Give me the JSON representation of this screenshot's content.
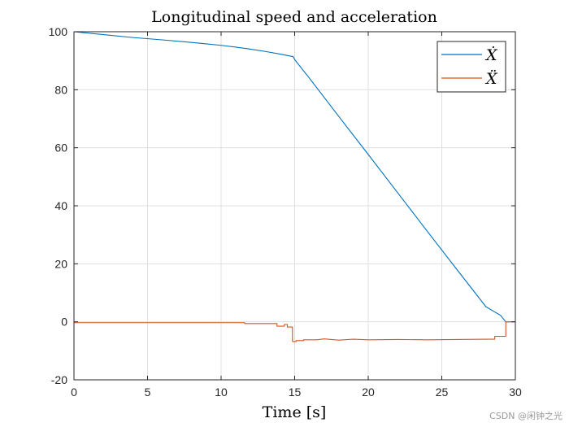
{
  "watermark": "CSDN @闲钟之光",
  "chart_data": {
    "type": "line",
    "title": "Longitudinal speed and acceleration",
    "xlabel": "Time [s]",
    "ylabel": "",
    "xlim": [
      0,
      30
    ],
    "ylim": [
      -20,
      100
    ],
    "xticks": [
      0,
      5,
      10,
      15,
      20,
      25,
      30
    ],
    "yticks": [
      -20,
      0,
      20,
      40,
      60,
      80,
      100
    ],
    "grid": true,
    "legend_position": "top-right",
    "series": [
      {
        "name": "Ẋ",
        "color": "#0072BD",
        "x": [
          0,
          2,
          4,
          6,
          8,
          10,
          11,
          12,
          13,
          14,
          14.9,
          15.0,
          16,
          18,
          20,
          22,
          24,
          26,
          28,
          29.0,
          29.35,
          30
        ],
        "y": [
          100,
          99,
          98,
          97.2,
          96.3,
          95.3,
          94.7,
          94,
          93.2,
          92.3,
          91.4,
          90.4,
          84,
          70.8,
          57.7,
          44.5,
          31.3,
          18.2,
          5.2,
          2.2,
          0,
          0
        ]
      },
      {
        "name": "Ẍ",
        "color": "#D95319",
        "x": [
          0,
          11.6,
          11.6,
          13.8,
          13.8,
          14.3,
          14.3,
          14.5,
          14.5,
          14.85,
          14.85,
          15.1,
          15.1,
          15.6,
          15.6,
          16.5,
          17,
          18,
          19,
          20,
          22,
          24,
          26,
          28,
          28.6,
          28.6,
          29.35,
          29.35,
          30
        ],
        "y": [
          -0.3,
          -0.3,
          -0.6,
          -0.6,
          -1.5,
          -1.5,
          -0.9,
          -0.9,
          -1.8,
          -1.8,
          -6.8,
          -6.8,
          -6.5,
          -6.5,
          -6.2,
          -6.2,
          -5.9,
          -6.3,
          -6.0,
          -6.2,
          -6.1,
          -6.2,
          -6.1,
          -6.0,
          -6.0,
          -5.0,
          -5.0,
          0,
          0
        ]
      }
    ]
  }
}
